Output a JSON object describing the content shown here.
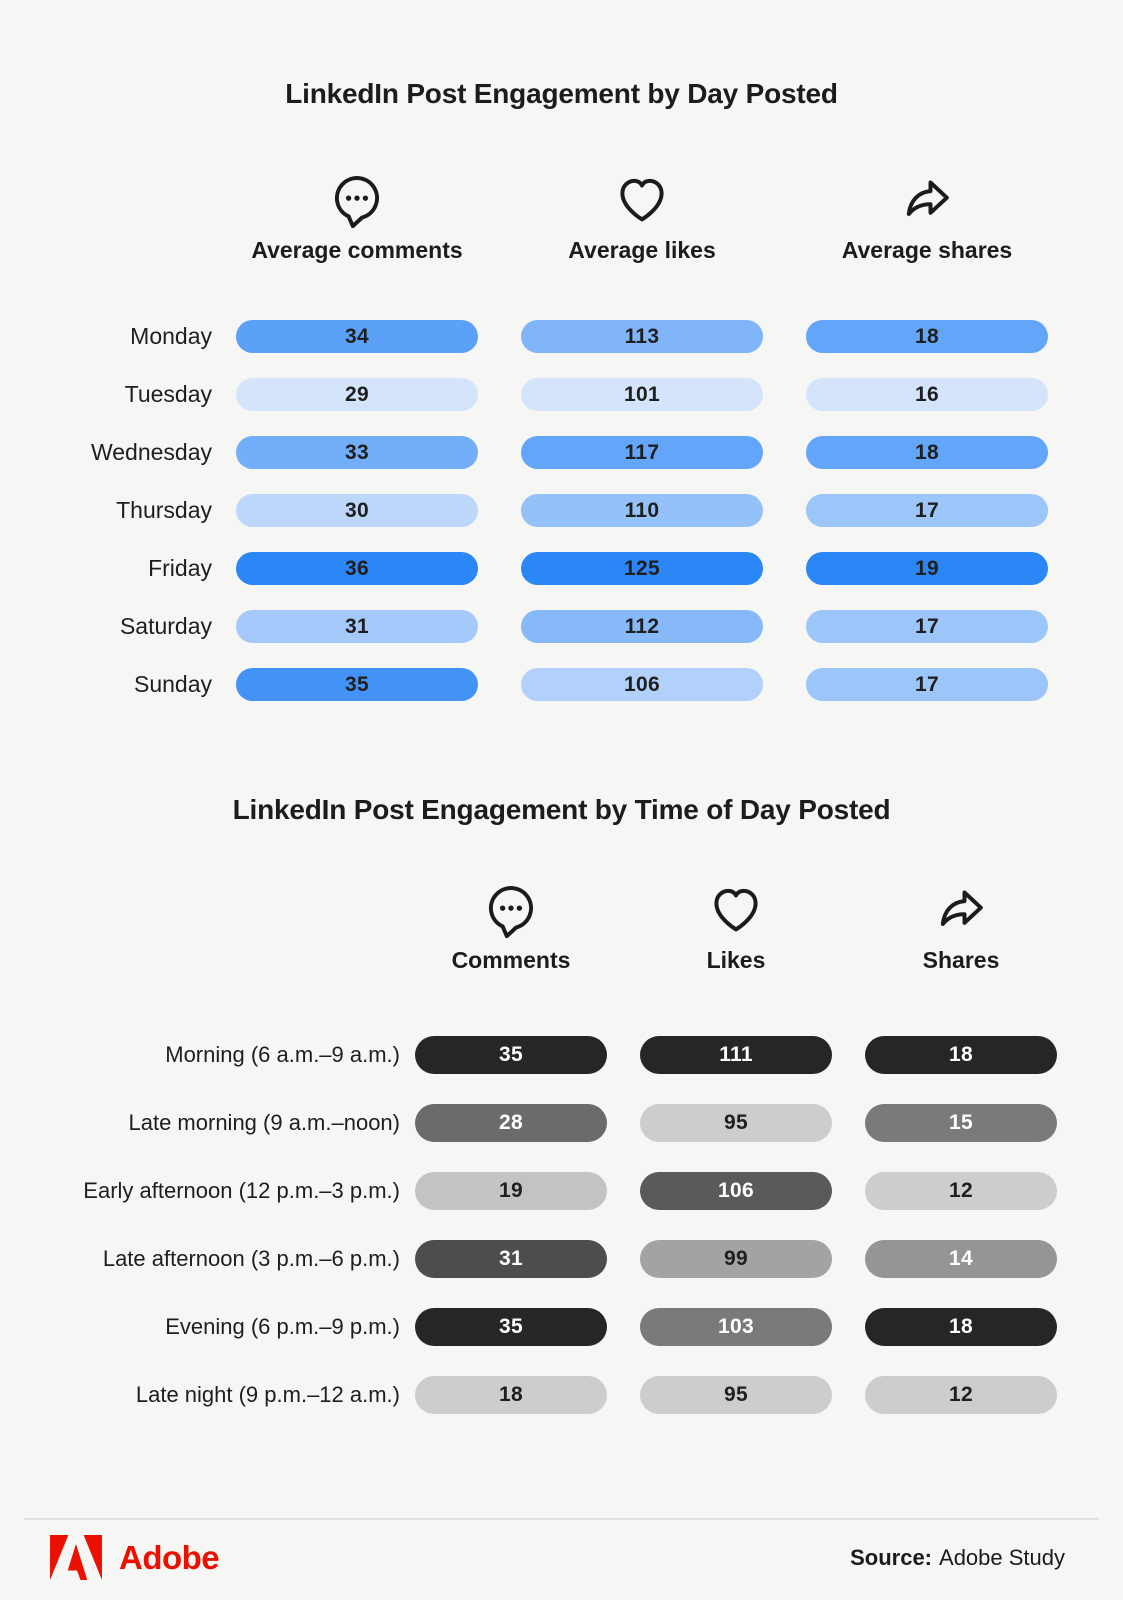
{
  "page": {
    "background": "#f6f6f5"
  },
  "chart_data": [
    {
      "type": "bar",
      "title": "LinkedIn Post Engagement by Day Posted",
      "categories": [
        "Monday",
        "Tuesday",
        "Wednesday",
        "Thursday",
        "Friday",
        "Saturday",
        "Sunday"
      ],
      "series": [
        {
          "name": "Average comments",
          "icon": "comment-icon",
          "values": [
            34,
            29,
            33,
            30,
            36,
            31,
            35
          ]
        },
        {
          "name": "Average likes",
          "icon": "heart-icon",
          "values": [
            113,
            101,
            117,
            110,
            125,
            112,
            106
          ]
        },
        {
          "name": "Average shares",
          "icon": "share-icon",
          "values": [
            18,
            16,
            18,
            17,
            19,
            17,
            17
          ]
        }
      ],
      "palette": {
        "light": "#d4e4fb",
        "dark": "#2b86f6"
      },
      "value_text": "dark",
      "legend_position": "top",
      "grid": false
    },
    {
      "type": "bar",
      "title": "LinkedIn Post Engagement by Time of Day Posted",
      "categories": [
        "Morning (6 a.m.–9 a.m.)",
        "Late morning (9 a.m.–noon)",
        "Early afternoon (12 p.m.–3 p.m.)",
        "Late afternoon (3 p.m.–6 p.m.)",
        "Evening (6 p.m.–9 p.m.)",
        "Late night (9 p.m.–12 a.m.)"
      ],
      "series": [
        {
          "name": "Comments",
          "icon": "comment-icon",
          "values": [
            35,
            28,
            19,
            31,
            35,
            18
          ]
        },
        {
          "name": "Likes",
          "icon": "heart-icon",
          "values": [
            111,
            95,
            106,
            99,
            103,
            95
          ]
        },
        {
          "name": "Shares",
          "icon": "share-icon",
          "values": [
            18,
            15,
            12,
            14,
            18,
            12
          ]
        }
      ],
      "palette": {
        "light": "#cdcdcd",
        "dark": "#262626"
      },
      "value_text": "auto",
      "legend_position": "top",
      "grid": false
    }
  ],
  "footer": {
    "brand": "Adobe",
    "brand_color": "#EB1000",
    "source_label": "Source:",
    "source_value": "Adobe Study"
  }
}
